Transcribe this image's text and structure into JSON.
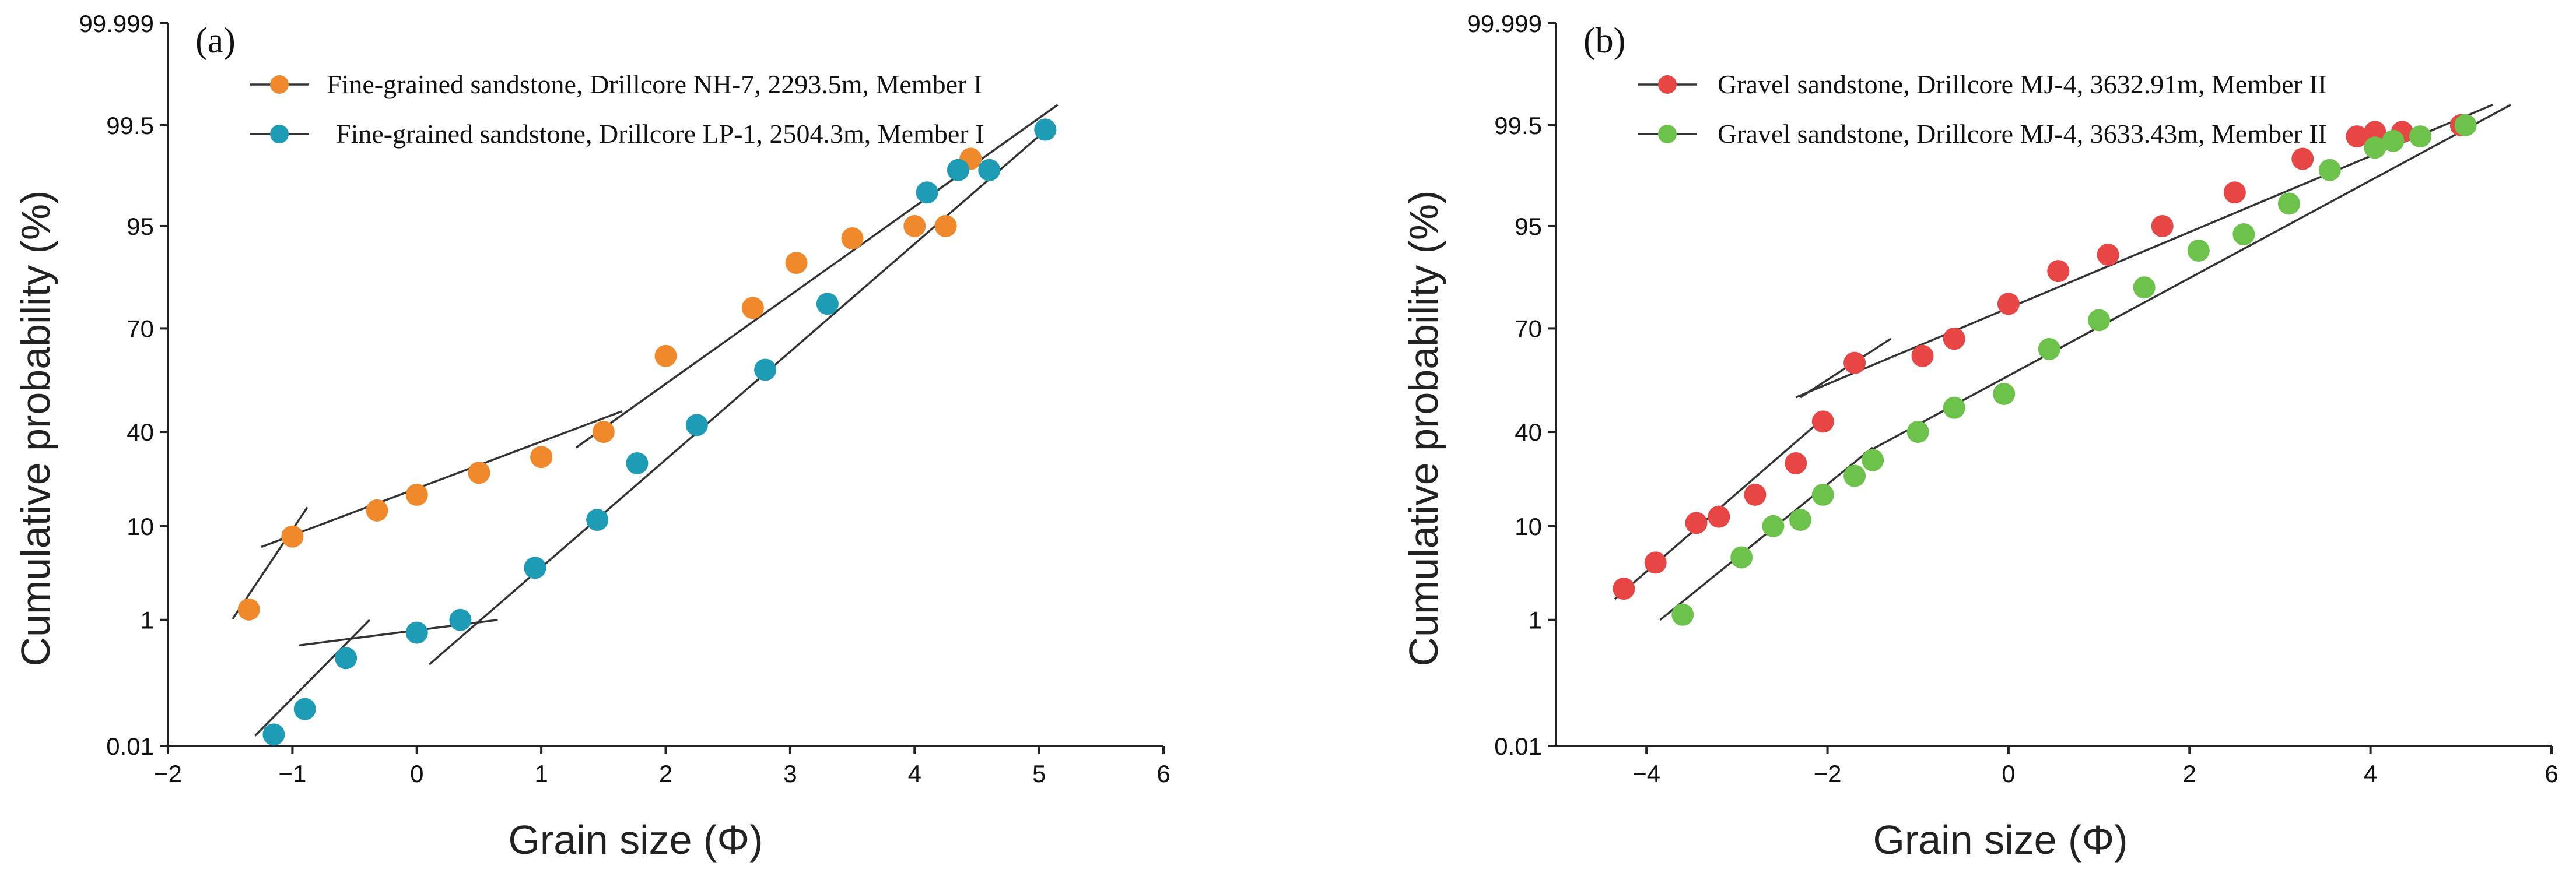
{
  "chart_data": [
    {
      "type": "scatter",
      "panel_label": "(a)",
      "xlabel": "Grain size (Φ)",
      "ylabel": "Cumulative probability (%)",
      "xlim": [
        -2,
        6
      ],
      "x_ticks": [
        -2,
        -1,
        0,
        1,
        2,
        3,
        4,
        5,
        6
      ],
      "x_tick_labels": [
        "−2",
        "−1",
        "0",
        "1",
        "2",
        "3",
        "4",
        "5",
        "6"
      ],
      "y_ticks": [
        0.01,
        1,
        10,
        40,
        70,
        95,
        99.5,
        99.999
      ],
      "y_tick_labels": [
        "0.01",
        "1",
        "10",
        "40",
        "70",
        "95",
        "99.5",
        "99.999"
      ],
      "legend_position": "top-right",
      "series": [
        {
          "name": "Fine-grained sandstone, Drillcore NH-7, 2293.5m, Member I",
          "color": "#F0892C",
          "x": [
            -1.35,
            -1.0,
            -0.32,
            0.0,
            0.5,
            1.0,
            1.5,
            2.0,
            2.7,
            3.05,
            3.5,
            4.0,
            4.25,
            4.45,
            5.05
          ],
          "y": [
            2.0,
            9.0,
            15.0,
            20.0,
            27.0,
            32.0,
            40.0,
            62.0,
            75.0,
            86.0,
            92.0,
            95.0,
            95.0,
            98.0,
            99.3
          ]
        },
        {
          "name": "Fine-grained sandstone, Drillcore LP-1, 2504.3m, Member I",
          "color": "#1E9BB5",
          "x": [
            -1.15,
            -0.9,
            -0.57,
            0.0,
            0.35,
            0.95,
            1.45,
            1.77,
            2.25,
            2.8,
            3.3,
            4.1,
            4.35,
            4.6,
            5.05
          ],
          "y": [
            0.1,
            0.3,
            0.7,
            0.9,
            1.0,
            6.0,
            12.0,
            30.0,
            42.0,
            58.0,
            76.0,
            96.5,
            97.5,
            97.5,
            99.3
          ]
        }
      ],
      "fit_lines": [
        {
          "x": [
            -1.48,
            -0.88
          ],
          "y": [
            1.1,
            16.0
          ]
        },
        {
          "x": [
            -1.25,
            1.65
          ],
          "y": [
            8.0,
            46.0
          ]
        },
        {
          "x": [
            1.28,
            5.15
          ],
          "y": [
            35.0,
            99.6
          ]
        },
        {
          "x": [
            -1.3,
            -0.38
          ],
          "y": [
            0.09,
            1.0
          ]
        },
        {
          "x": [
            -0.95,
            0.65
          ],
          "y": [
            0.8,
            1.0
          ]
        },
        {
          "x": [
            0.1,
            5.1
          ],
          "y": [
            0.65,
            99.5
          ]
        }
      ]
    },
    {
      "type": "scatter",
      "panel_label": "(b)",
      "xlabel": "Grain size (Φ)",
      "ylabel": "Cumulative probability (%)",
      "xlim": [
        -5,
        6
      ],
      "x_ticks": [
        -4,
        -2,
        0,
        2,
        4,
        6
      ],
      "x_tick_labels": [
        "−4",
        "−2",
        "0",
        "2",
        "4",
        "6"
      ],
      "y_ticks": [
        0.01,
        1,
        10,
        40,
        70,
        95,
        99.5,
        99.999
      ],
      "y_tick_labels": [
        "0.01",
        "1",
        "10",
        "40",
        "70",
        "95",
        "99.5",
        "99.999"
      ],
      "legend_position": "top-right",
      "series": [
        {
          "name": "Gravel sandstone, Drillcore MJ-4, 3632.91m, Member II",
          "color": "#E84545",
          "x": [
            -4.25,
            -3.9,
            -3.45,
            -3.2,
            -2.8,
            -2.35,
            -2.05,
            -1.7,
            -0.95,
            -0.6,
            0.0,
            0.55,
            1.1,
            1.7,
            2.5,
            3.25,
            3.85,
            4.05,
            4.35,
            5.0
          ],
          "y": [
            4.0,
            6.5,
            11.0,
            13.0,
            20.0,
            30.0,
            43.0,
            60.0,
            62.0,
            67.0,
            76.0,
            84.0,
            88.0,
            95.0,
            96.5,
            98.0,
            99.0,
            99.2,
            99.2,
            99.5
          ]
        },
        {
          "name": "Gravel sandstone, Drillcore MJ-4, 3633.43m, Member II",
          "color": "#6CC24A",
          "x": [
            -3.6,
            -2.95,
            -2.6,
            -2.3,
            -2.05,
            -1.7,
            -1.5,
            -1.0,
            -0.6,
            -0.05,
            0.45,
            1.0,
            1.5,
            2.1,
            2.6,
            3.1,
            3.55,
            4.05,
            4.25,
            4.55,
            5.05
          ],
          "y": [
            1.5,
            7.0,
            10.0,
            12.0,
            20.0,
            26.0,
            31.0,
            40.0,
            47.0,
            51.0,
            64.0,
            72.0,
            80.0,
            89.0,
            93.0,
            96.0,
            97.5,
            98.5,
            98.8,
            99.0,
            99.5
          ]
        }
      ],
      "fit_lines": [
        {
          "x": [
            -4.35,
            -2.0
          ],
          "y": [
            3.0,
            45.0
          ]
        },
        {
          "x": [
            -2.3,
            -1.3
          ],
          "y": [
            50.0,
            67.0
          ]
        },
        {
          "x": [
            -2.35,
            5.35
          ],
          "y": [
            50.0,
            99.6
          ]
        },
        {
          "x": [
            -3.85,
            -1.5
          ],
          "y": [
            1.0,
            35.0
          ]
        },
        {
          "x": [
            -1.6,
            5.55
          ],
          "y": [
            33.0,
            99.6
          ]
        }
      ]
    }
  ]
}
